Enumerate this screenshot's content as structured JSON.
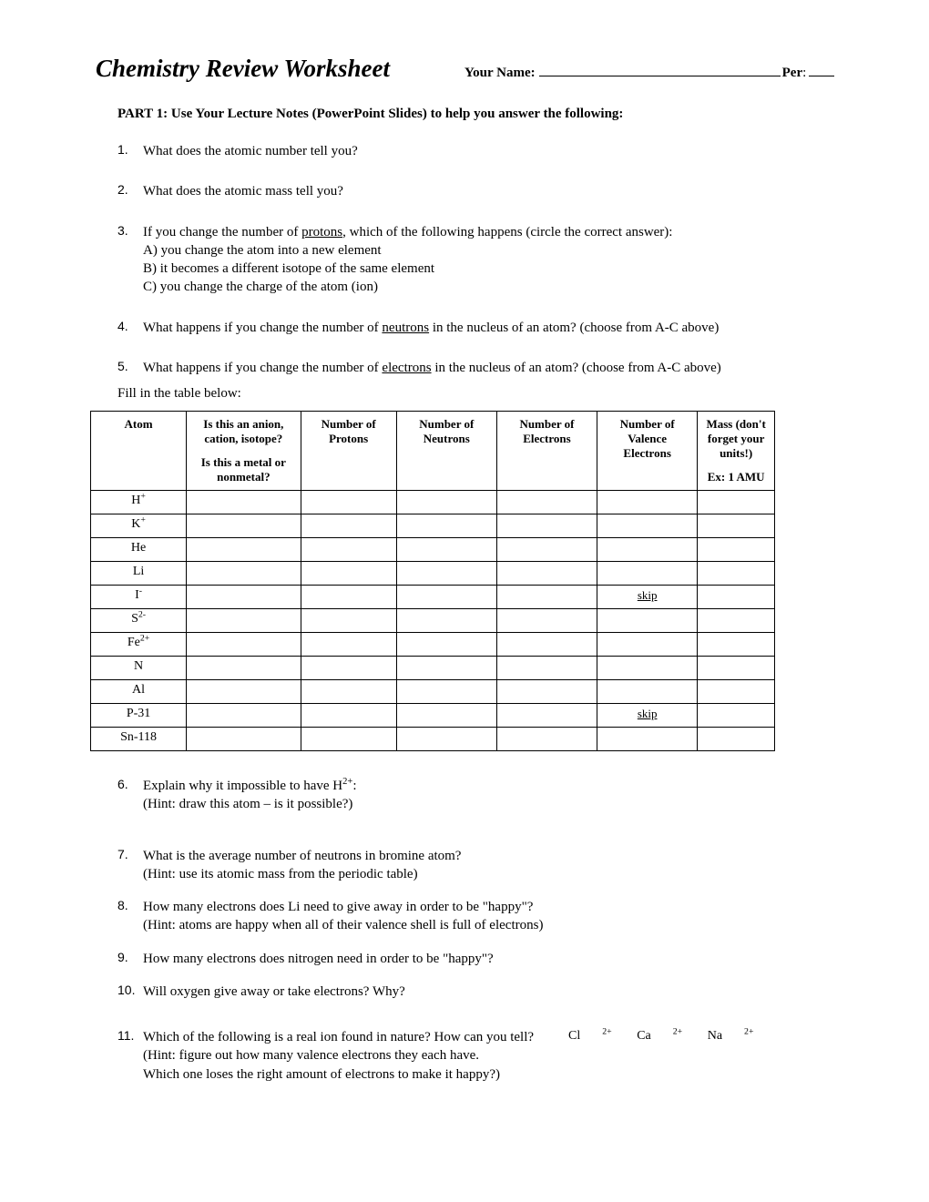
{
  "header": {
    "title": "Chemistry Review Worksheet",
    "name_label": "Your Name:",
    "per_label": "Per",
    "per_colon": ":"
  },
  "instructions": "PART 1: Use Your Lecture Notes (PowerPoint Slides) to help you answer the following:",
  "questions_top": [
    {
      "num": "1.",
      "text": "What does the atomic number tell you?"
    },
    {
      "num": "2.",
      "text": "What does the atomic mass tell you?"
    },
    {
      "num": "3.",
      "text_pre": "If you change the number of ",
      "under": "protons,",
      "text_post": " which of the following happens (circle the correct answer):",
      "opts": [
        "A) you change the atom into a new element",
        "B) it becomes a different isotope of the same element",
        "C) you change the charge of the atom (ion)"
      ]
    },
    {
      "num": "4.",
      "text_pre": "What happens if you change the number of ",
      "under": "neutrons",
      "text_post": " in the nucleus of an atom? (choose from A-C above)"
    },
    {
      "num": "5.",
      "text_pre": "What happens if you change the number of ",
      "under": "electrons",
      "text_post": " in the nucleus of an atom? (choose from A-C above)"
    }
  ],
  "fill_label": "Fill in the table below:",
  "table": {
    "headers": {
      "atom": "Atom",
      "type_l1": "Is this an anion, cation, isotope?",
      "type_l2": "Is this a metal or nonmetal?",
      "protons": "Number of Protons",
      "neutrons": "Number of Neutrons",
      "electrons": "Number of Electrons",
      "valence": "Number of Valence Electrons",
      "mass_l1": "Mass (don't forget your units!)",
      "mass_l2": "Ex: 1 AMU"
    },
    "rows": [
      {
        "atom_html": "H<sup>+</sup>",
        "valence": ""
      },
      {
        "atom_html": "K<sup>+</sup>",
        "valence": ""
      },
      {
        "atom_html": "He",
        "valence": ""
      },
      {
        "atom_html": "Li",
        "valence": ""
      },
      {
        "atom_html": "I<sup>-</sup>",
        "valence": "skip"
      },
      {
        "atom_html": "S<sup>2-</sup>",
        "valence": ""
      },
      {
        "atom_html": "Fe<sup>2+</sup>",
        "valence": ""
      },
      {
        "atom_html": "N",
        "valence": ""
      },
      {
        "atom_html": "Al",
        "valence": ""
      },
      {
        "atom_html": "P-31",
        "valence": "skip"
      },
      {
        "atom_html": "Sn-118",
        "valence": ""
      }
    ]
  },
  "questions_bottom": [
    {
      "num": "6.",
      "line1_pre": "Explain why it impossible to have H",
      "line1_sup": "2+",
      "line1_post": ":",
      "line2": "(Hint: draw this atom – is it possible?)"
    },
    {
      "num": "7.",
      "line1": "What is the average number of neutrons in bromine atom?",
      "line2": "(Hint: use its atomic mass from the periodic table)"
    },
    {
      "num": "8.",
      "line1": "How many electrons does Li need to give away in order to be \"happy\"?",
      "line2": "(Hint: atoms are happy when all of their valence shell is full of electrons)"
    },
    {
      "num": "9.",
      "line1": "How many electrons does nitrogen need in order to be \"happy\"?"
    },
    {
      "num": "10.",
      "line1": "Will oxygen give away or take electrons? Why?"
    },
    {
      "num": "11.",
      "line1": "Which of the following is a real ion found in nature? How can you tell?",
      "ions": [
        "Cl",
        "Ca",
        "Na"
      ],
      "ion_charge": "2+",
      "line2": "(Hint: figure out how many valence electrons they each have.",
      "line3": "Which one loses the right amount of electrons to make it happy?)"
    }
  ]
}
